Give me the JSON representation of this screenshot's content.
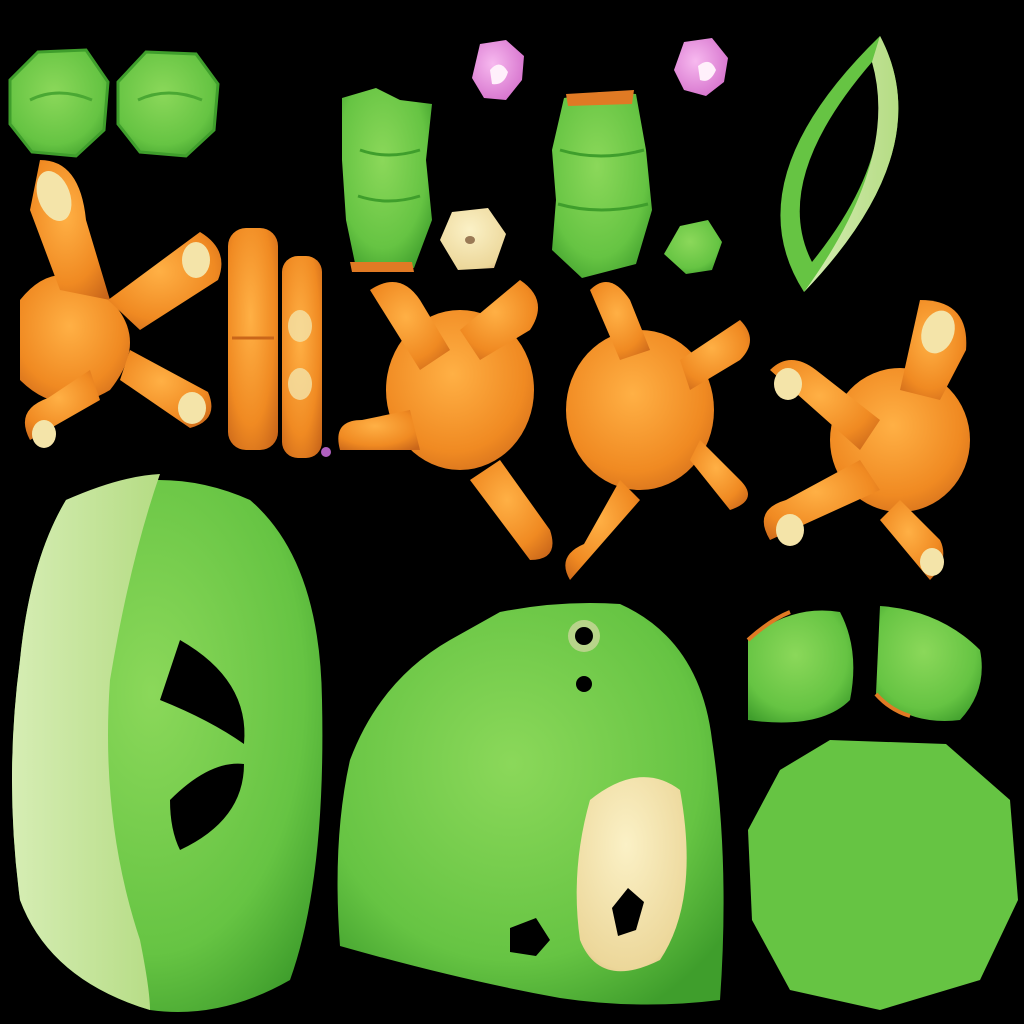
{
  "atlas": {
    "background": "#000000",
    "colors": {
      "green": "#66c443",
      "green_light": "#8bd85a",
      "green_dark": "#3f9e2c",
      "pale_green": "#c3e39a",
      "orange": "#f08a22",
      "orange_dark": "#c9661a",
      "orange_light": "#ffb045",
      "cream": "#f4e4a9",
      "cream_shadow": "#d9b98a",
      "pink": "#e18ad8",
      "pink_light": "#f7b9ef"
    },
    "pieces": [
      {
        "name": "eye-disc",
        "color": "green",
        "count": 2
      },
      {
        "name": "limb-segment",
        "color": "green",
        "count": 2
      },
      {
        "name": "ear-curl",
        "color": "pink",
        "count": 2
      },
      {
        "name": "cream-nub",
        "color": "cream",
        "count": 1
      },
      {
        "name": "hex-patch",
        "color": "green",
        "count": 1
      },
      {
        "name": "leaf-ring",
        "color": "green",
        "count": 1
      },
      {
        "name": "webbed-foot",
        "color": "orange",
        "count": 5
      },
      {
        "name": "toe-strip",
        "color": "orange",
        "count": 2
      },
      {
        "name": "head-shell",
        "color": "green",
        "count": 1
      },
      {
        "name": "body-shell",
        "color": "green",
        "count": 1
      },
      {
        "name": "leaf-flap",
        "color": "green",
        "count": 2
      },
      {
        "name": "base-disc",
        "color": "green",
        "count": 1
      }
    ]
  }
}
